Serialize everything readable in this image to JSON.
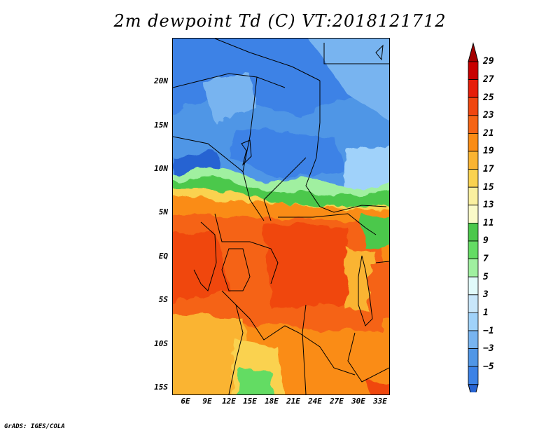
{
  "title": "2m dewpoint Td (C) VT:2018121712",
  "credit": "GrADS: IGES/COLA",
  "map": {
    "lat_labels": [
      "20N",
      "15N",
      "10N",
      "5N",
      "EQ",
      "5S",
      "10S",
      "15S"
    ],
    "lat_values": [
      20,
      15,
      10,
      5,
      0,
      -5,
      -10,
      -15
    ],
    "lon_labels": [
      "6E",
      "9E",
      "12E",
      "15E",
      "18E",
      "21E",
      "24E",
      "27E",
      "30E",
      "33E"
    ],
    "lon_values": [
      6,
      9,
      12,
      15,
      18,
      21,
      24,
      27,
      30,
      33
    ],
    "lon_range": [
      4,
      34
    ],
    "lat_range": [
      -16,
      25
    ]
  },
  "colorbar": {
    "labels": [
      "29",
      "27",
      "25",
      "23",
      "21",
      "19",
      "17",
      "15",
      "13",
      "11",
      "9",
      "7",
      "5",
      "3",
      "1",
      "−1",
      "−3",
      "−5"
    ],
    "colors": [
      "#a50000",
      "#c80000",
      "#e61e0a",
      "#f0460f",
      "#f56414",
      "#fa8c14",
      "#fab432",
      "#fad250",
      "#faf0a0",
      "#fafac8",
      "#4bc84b",
      "#64dc64",
      "#a0f0a0",
      "#e1fafa",
      "#c8e6fa",
      "#a0d2fa",
      "#78b4f0",
      "#5096e6",
      "#3c82e6",
      "#2864d2"
    ]
  }
}
